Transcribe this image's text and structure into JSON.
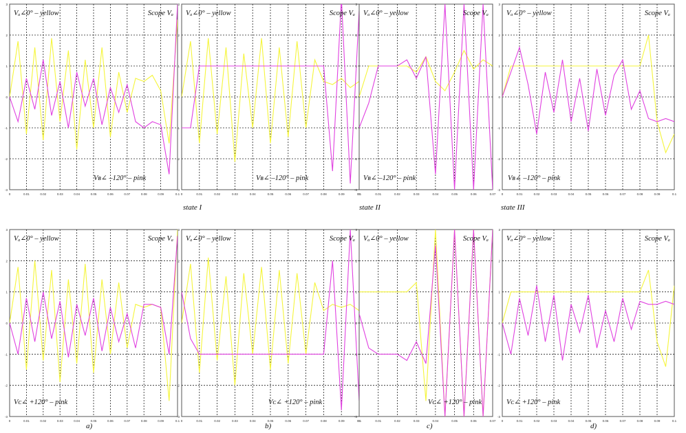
{
  "figure": {
    "state_labels": [
      "state  I",
      "state  II",
      "state  III"
    ],
    "sub_labels": [
      "a)",
      "b)",
      "c)",
      "d)"
    ],
    "colors": {
      "yellow": "#f5f53a",
      "pink": "#e040e0",
      "orange": "#f0a020",
      "grid": "#222222",
      "frame": "#555555"
    }
  },
  "chart_data": [
    {
      "id": "top-a",
      "type": "line",
      "scope_label": "Scope Vₐ",
      "label_top": "Vₐ∠0° – yellow",
      "label_bottom": "Vʙ∠ –120° – pink",
      "xlim": [
        0,
        0.1
      ],
      "ylim": [
        -3,
        3
      ],
      "xticks": [
        "0",
        "0.01",
        "0.02",
        "0.03",
        "0.04",
        "0.05",
        "0.06",
        "0.07",
        "0.08",
        "0.09",
        "0.1"
      ],
      "yticks": [
        "3",
        "2",
        "1",
        "0",
        "-1",
        "-2",
        "-3"
      ],
      "series": [
        {
          "color": "yellow",
          "x": [
            0,
            0.005,
            0.01,
            0.015,
            0.02,
            0.025,
            0.03,
            0.035,
            0.04,
            0.045,
            0.05,
            0.055,
            0.06,
            0.065,
            0.07,
            0.075,
            0.08,
            0.085,
            0.09,
            0.095,
            0.1
          ],
          "y": [
            0,
            1.8,
            -1.2,
            1.6,
            -1.4,
            1.9,
            -0.8,
            1.5,
            -1.7,
            1.2,
            -1.0,
            1.6,
            -1.3,
            0.8,
            -0.5,
            0.6,
            0.5,
            0.7,
            0.2,
            -1.5,
            2.5
          ]
        },
        {
          "color": "pink",
          "x": [
            0,
            0.005,
            0.01,
            0.015,
            0.02,
            0.025,
            0.03,
            0.035,
            0.04,
            0.045,
            0.05,
            0.055,
            0.06,
            0.065,
            0.07,
            0.075,
            0.08,
            0.085,
            0.09,
            0.095,
            0.1
          ],
          "y": [
            0,
            -0.8,
            0.6,
            -0.4,
            1.2,
            -0.6,
            0.5,
            -1.0,
            0.8,
            -0.3,
            0.6,
            -0.9,
            0.3,
            -0.5,
            0.4,
            -0.8,
            -1.0,
            -0.8,
            -0.9,
            -2.5,
            3
          ]
        }
      ]
    },
    {
      "id": "top-b",
      "type": "line",
      "scope_label": "Scope Vₐ",
      "label_top": "Vₐ∠0° – yellow",
      "label_bottom": "Vʙ∠ –120° – pink",
      "xlim": [
        0,
        0.1
      ],
      "ylim": [
        -3,
        3
      ],
      "xticks": [
        "0",
        "0.01",
        "0.02",
        "0.03",
        "0.04",
        "0.05",
        "0.06",
        "0.07",
        "0.08",
        "0.09",
        "0.1"
      ],
      "yticks": [
        "3",
        "2",
        "1",
        "0",
        "-1",
        "-2",
        "-3"
      ],
      "series": [
        {
          "color": "yellow",
          "x": [
            0,
            0.005,
            0.01,
            0.015,
            0.02,
            0.025,
            0.03,
            0.035,
            0.04,
            0.045,
            0.05,
            0.055,
            0.06,
            0.065,
            0.07,
            0.075,
            0.08,
            0.085,
            0.09,
            0.095,
            0.1
          ],
          "y": [
            0,
            1.8,
            -1.5,
            1.9,
            -1.2,
            1.6,
            -2.1,
            1.4,
            -1.0,
            1.9,
            -1.5,
            1.6,
            -1.3,
            1.8,
            -1.0,
            1.2,
            0.5,
            0.4,
            0.6,
            0.3,
            0.5
          ]
        },
        {
          "color": "pink",
          "x": [
            0,
            0.005,
            0.01,
            0.015,
            0.02,
            0.025,
            0.03,
            0.035,
            0.04,
            0.045,
            0.05,
            0.055,
            0.06,
            0.065,
            0.07,
            0.075,
            0.08,
            0.085,
            0.09,
            0.095,
            0.1
          ],
          "y": [
            -1,
            -1,
            1,
            1,
            1,
            1,
            1,
            1,
            1,
            1,
            1,
            1,
            1,
            1,
            1,
            1,
            1,
            -2.4,
            3.2,
            -2.8,
            2.8
          ]
        }
      ]
    },
    {
      "id": "top-c",
      "type": "line",
      "scope_label": "Scope Vₐ",
      "label_top": "Vₐ∠0° – yellow",
      "label_bottom": "Vʙ∠ –120° – pink",
      "xlim": [
        0,
        0.07
      ],
      "ylim": [
        -3,
        3
      ],
      "xticks": [
        "0",
        "0.01",
        "0.02",
        "0.03",
        "0.04",
        "0.05",
        "0.06",
        "0.07"
      ],
      "yticks": [
        "3",
        "2",
        "1",
        "0",
        "-1",
        "-2",
        "-3"
      ],
      "series": [
        {
          "color": "yellow",
          "x": [
            0,
            0.005,
            0.01,
            0.015,
            0.02,
            0.025,
            0.03,
            0.035,
            0.04,
            0.045,
            0.05,
            0.055,
            0.06,
            0.065,
            0.07
          ],
          "y": [
            0,
            1,
            1,
            1,
            1,
            1,
            0.8,
            1.3,
            0.5,
            0.2,
            0.8,
            1.5,
            0.9,
            1.2,
            1
          ]
        },
        {
          "color": "pink",
          "x": [
            0,
            0.005,
            0.01,
            0.015,
            0.02,
            0.025,
            0.03,
            0.035,
            0.04,
            0.045,
            0.05,
            0.055,
            0.06,
            0.065,
            0.07
          ],
          "y": [
            -1,
            -0.2,
            1,
            1,
            1,
            1.2,
            0.6,
            1.3,
            -2.5,
            3,
            -3,
            3,
            -3,
            3,
            -3
          ]
        }
      ]
    },
    {
      "id": "top-d",
      "type": "line",
      "scope_label": "Scope Vₐ",
      "label_top": "Vₐ∠0° – yellow",
      "label_bottom": "Vʙ∠ –120° – pink",
      "xlim": [
        0,
        0.1
      ],
      "ylim": [
        -3,
        3
      ],
      "xticks": [
        "0",
        "0.01",
        "0.02",
        "0.03",
        "0.04",
        "0.05",
        "0.06",
        "0.07",
        "0.08",
        "0.09",
        "0.1"
      ],
      "yticks": [
        "3",
        "2",
        "1",
        "0",
        "-1",
        "-2",
        "-3"
      ],
      "series": [
        {
          "color": "yellow",
          "x": [
            0,
            0.005,
            0.01,
            0.015,
            0.02,
            0.025,
            0.03,
            0.035,
            0.04,
            0.045,
            0.05,
            0.055,
            0.06,
            0.065,
            0.07,
            0.075,
            0.08,
            0.085,
            0.09,
            0.095,
            0.1
          ],
          "y": [
            0,
            1,
            1,
            1,
            1,
            1,
            1,
            1,
            1,
            1,
            1,
            1,
            1,
            1,
            1,
            1,
            1,
            2.0,
            -0.8,
            -1.8,
            -1.2
          ]
        },
        {
          "color": "pink",
          "x": [
            0,
            0.005,
            0.01,
            0.015,
            0.02,
            0.025,
            0.03,
            0.035,
            0.04,
            0.045,
            0.05,
            0.055,
            0.06,
            0.065,
            0.07,
            0.075,
            0.08,
            0.085,
            0.09,
            0.095,
            0.1
          ],
          "y": [
            0,
            0.8,
            1.6,
            0.4,
            -1.2,
            0.8,
            -0.5,
            1.2,
            -0.8,
            0.6,
            -1.1,
            0.9,
            -0.6,
            0.7,
            1.2,
            -0.4,
            0.2,
            -0.7,
            -0.8,
            -0.7,
            -0.8
          ]
        }
      ]
    },
    {
      "id": "bottom-a",
      "type": "line",
      "scope_label": "Scope Vₐ",
      "label_top": "Vₐ∠0° – yellow",
      "label_bottom": "Vᴄ∠ +120° – pink",
      "xlim": [
        0,
        0.1
      ],
      "ylim": [
        -3,
        3
      ],
      "xticks": [
        "0",
        "0.01",
        "0.02",
        "0.03",
        "0.04",
        "0.05",
        "0.06",
        "0.07",
        "0.08",
        "0.09",
        "0.1"
      ],
      "yticks": [
        "3",
        "2",
        "1",
        "0",
        "-1",
        "-2",
        "-3"
      ],
      "series": [
        {
          "color": "yellow",
          "x": [
            0,
            0.005,
            0.01,
            0.015,
            0.02,
            0.025,
            0.03,
            0.035,
            0.04,
            0.045,
            0.05,
            0.055,
            0.06,
            0.065,
            0.07,
            0.075,
            0.08,
            0.085,
            0.09,
            0.095,
            0.1
          ],
          "y": [
            0,
            1.8,
            -1.5,
            2.0,
            -1.2,
            1.7,
            -1.9,
            1.4,
            -1.3,
            1.9,
            -1.6,
            1.4,
            -1.0,
            1.3,
            -0.8,
            0.6,
            0.5,
            0.6,
            0.5,
            -2.5,
            3
          ]
        },
        {
          "color": "pink",
          "x": [
            0,
            0.005,
            0.01,
            0.015,
            0.02,
            0.025,
            0.03,
            0.035,
            0.04,
            0.045,
            0.05,
            0.055,
            0.06,
            0.065,
            0.07,
            0.075,
            0.08,
            0.085,
            0.09,
            0.095,
            0.1
          ],
          "y": [
            0,
            -1.0,
            0.8,
            -0.6,
            1.0,
            -0.5,
            0.7,
            -1.1,
            0.6,
            -0.4,
            0.8,
            -0.9,
            0.5,
            -0.6,
            0.3,
            -0.8,
            0.6,
            0.6,
            0.5,
            -1.0,
            2.8
          ]
        }
      ]
    },
    {
      "id": "bottom-b",
      "type": "line",
      "scope_label": "Scope Vₐ",
      "label_top": "Vₐ∠0° – yellow",
      "label_bottom": "Vᴄ∠ +120° – pink",
      "xlim": [
        0,
        0.1
      ],
      "ylim": [
        -3,
        3
      ],
      "xticks": [
        "0",
        "0.01",
        "0.02",
        "0.03",
        "0.04",
        "0.05",
        "0.06",
        "0.07",
        "0.08",
        "0.09",
        "0.1"
      ],
      "yticks": [
        "3",
        "2",
        "1",
        "0",
        "-1",
        "-2",
        "-3"
      ],
      "series": [
        {
          "color": "yellow",
          "x": [
            0,
            0.005,
            0.01,
            0.015,
            0.02,
            0.025,
            0.03,
            0.035,
            0.04,
            0.045,
            0.05,
            0.055,
            0.06,
            0.065,
            0.07,
            0.075,
            0.08,
            0.085,
            0.09,
            0.095,
            0.1
          ],
          "y": [
            0,
            1.9,
            -1.6,
            2.1,
            -1.2,
            1.5,
            -2.0,
            1.6,
            -1.0,
            1.8,
            -1.5,
            1.7,
            -1.3,
            1.6,
            -1.0,
            1.3,
            0.4,
            0.6,
            0.5,
            0.6,
            0.4
          ]
        },
        {
          "color": "pink",
          "x": [
            0,
            0.005,
            0.01,
            0.015,
            0.02,
            0.025,
            0.03,
            0.035,
            0.04,
            0.045,
            0.05,
            0.055,
            0.06,
            0.065,
            0.07,
            0.075,
            0.08,
            0.085,
            0.09,
            0.095,
            0.1
          ],
          "y": [
            1,
            -0.5,
            -1,
            -1,
            -1,
            -1,
            -1,
            -1,
            -1,
            -1,
            -1,
            -1,
            -1,
            -1,
            -1,
            -1,
            -1,
            2.0,
            -2.8,
            3.0,
            -2.5
          ]
        }
      ]
    },
    {
      "id": "bottom-c",
      "type": "line",
      "scope_label": "Scope Vₐ",
      "label_top": "Vₐ∠0° – yellow",
      "label_bottom": "Vᴄ∠ +120° – pink",
      "xlim": [
        0,
        0.07
      ],
      "ylim": [
        -3,
        3
      ],
      "xticks": [
        "0",
        "0.01",
        "0.02",
        "0.03",
        "0.04",
        "0.05",
        "0.06",
        "0.07"
      ],
      "yticks": [
        "3",
        "2",
        "1",
        "0",
        "-1",
        "-2",
        "-3"
      ],
      "series": [
        {
          "color": "yellow",
          "x": [
            0,
            0.005,
            0.01,
            0.015,
            0.02,
            0.025,
            0.03,
            0.035,
            0.04,
            0.045,
            0.05,
            0.055,
            0.06,
            0.065,
            0.07
          ],
          "y": [
            1,
            1,
            1,
            1,
            1,
            1,
            1.3,
            -2.5,
            3,
            -3,
            3,
            -3,
            3,
            -3,
            3
          ]
        },
        {
          "color": "pink",
          "x": [
            0,
            0.005,
            0.01,
            0.015,
            0.02,
            0.025,
            0.03,
            0.035,
            0.04,
            0.045,
            0.05,
            0.055,
            0.06,
            0.065,
            0.07
          ],
          "y": [
            0.3,
            -0.8,
            -1,
            -1,
            -1,
            -1.2,
            -0.6,
            -1.3,
            2.5,
            -3,
            3,
            -3,
            3,
            -3,
            3
          ]
        }
      ]
    },
    {
      "id": "bottom-d",
      "type": "line",
      "scope_label": "Scope Vₐ",
      "label_top": "Vₐ∠0° – yellow",
      "label_bottom": "Vᴄ∠ +120° – pink",
      "xlim": [
        0,
        0.1
      ],
      "ylim": [
        -3,
        3
      ],
      "xticks": [
        "0",
        "0.01",
        "0.02",
        "0.03",
        "0.04",
        "0.05",
        "0.06",
        "0.07",
        "0.08",
        "0.09",
        "0.1"
      ],
      "yticks": [
        "3",
        "2",
        "1",
        "0",
        "-1",
        "-2",
        "-3"
      ],
      "series": [
        {
          "color": "yellow",
          "x": [
            0,
            0.005,
            0.01,
            0.015,
            0.02,
            0.025,
            0.03,
            0.035,
            0.04,
            0.045,
            0.05,
            0.055,
            0.06,
            0.065,
            0.07,
            0.075,
            0.08,
            0.085,
            0.09,
            0.095,
            0.1
          ],
          "y": [
            0,
            1,
            1,
            1,
            1,
            1,
            1,
            1,
            1,
            1,
            1,
            1,
            1,
            1,
            1,
            1,
            1,
            1.7,
            -0.6,
            -1.4,
            1.2
          ]
        },
        {
          "color": "pink",
          "x": [
            0,
            0.005,
            0.01,
            0.015,
            0.02,
            0.025,
            0.03,
            0.035,
            0.04,
            0.045,
            0.05,
            0.055,
            0.06,
            0.065,
            0.07,
            0.075,
            0.08,
            0.085,
            0.09,
            0.095,
            0.1
          ],
          "y": [
            0,
            -1.0,
            0.8,
            -0.4,
            1.2,
            -0.6,
            0.9,
            -1.2,
            0.6,
            -0.3,
            0.9,
            -0.8,
            0.4,
            -0.6,
            0.8,
            -0.2,
            0.7,
            0.6,
            0.6,
            0.7,
            0.6
          ]
        }
      ]
    }
  ]
}
